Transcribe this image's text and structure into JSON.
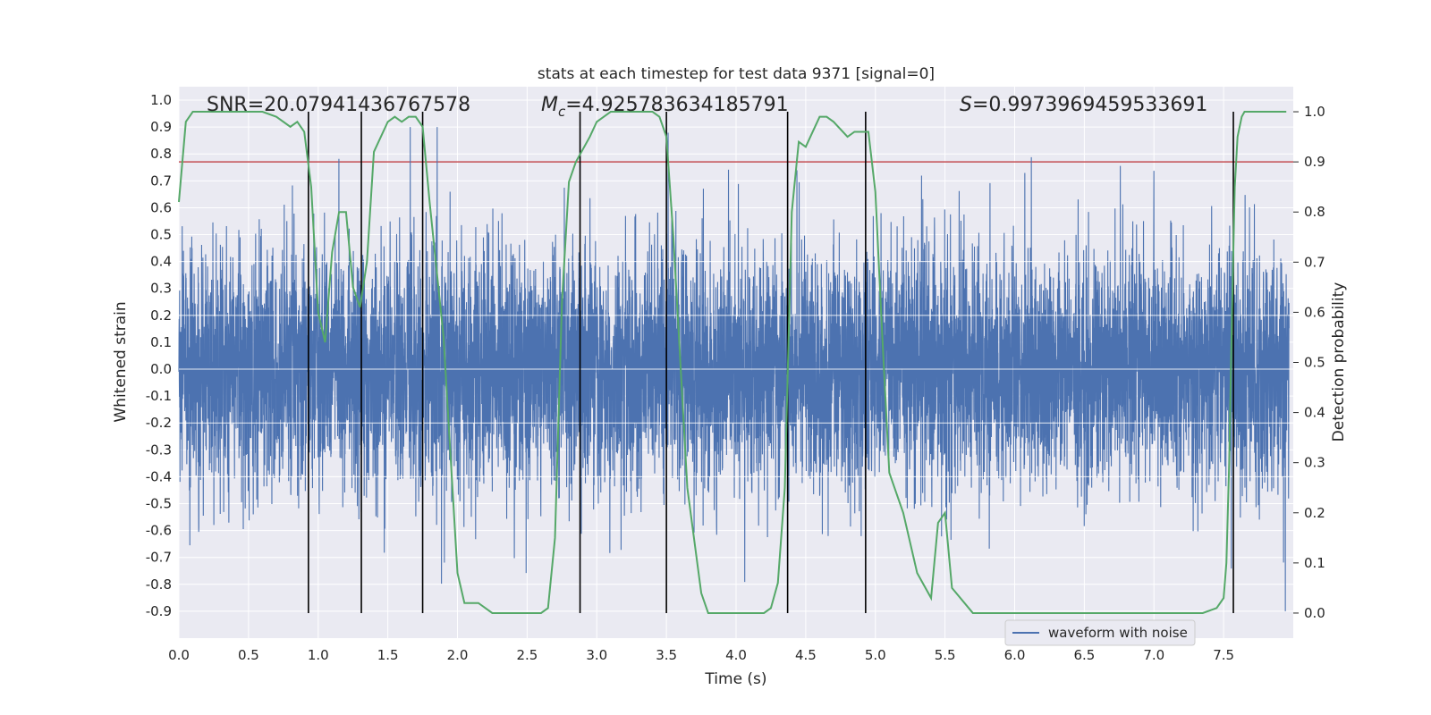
{
  "chart_data": {
    "type": "line",
    "title": "stats at each timestep for test data 9371 [signal=0]",
    "xlabel": "Time (s)",
    "ylabel_left": "Whitened strain",
    "ylabel_right": "Detection probability",
    "xlim": [
      0.0,
      8.0
    ],
    "ylim_left": [
      -1.0,
      1.05
    ],
    "ylim_right": [
      -0.05,
      1.05
    ],
    "xticks": [
      "0.0",
      "0.5",
      "1.0",
      "1.5",
      "2.0",
      "2.5",
      "3.0",
      "3.5",
      "4.0",
      "4.5",
      "5.0",
      "5.5",
      "6.0",
      "6.5",
      "7.0",
      "7.5"
    ],
    "yticks_left": [
      "-0.9",
      "-0.8",
      "-0.7",
      "-0.6",
      "-0.5",
      "-0.4",
      "-0.3",
      "-0.2",
      "-0.1",
      "0.0",
      "0.1",
      "0.2",
      "0.3",
      "0.4",
      "0.5",
      "0.6",
      "0.7",
      "0.8",
      "0.9",
      "1.0"
    ],
    "yticks_right": [
      "0.0",
      "0.1",
      "0.2",
      "0.3",
      "0.4",
      "0.5",
      "0.6",
      "0.7",
      "0.8",
      "0.9",
      "1.0"
    ],
    "grid": true,
    "legend": {
      "placement": "lower-right",
      "entries": [
        "waveform with noise"
      ]
    },
    "annotations": {
      "snr": "SNR=20.07941436767578",
      "mc_symbol": "M",
      "mc_sub": "c",
      "mc_value": "=4.925783634185791",
      "s_symbol": "S",
      "s_value": "=0.9973969459533691"
    },
    "threshold": {
      "value": 0.9,
      "axis": "right",
      "color": "#c44e52"
    },
    "vertical_lines_x": [
      0.93,
      1.31,
      1.75,
      2.88,
      3.5,
      4.37,
      4.93,
      7.57
    ],
    "waveform": {
      "name": "waveform with noise",
      "color": "#4c72b0",
      "n_samples": 8000,
      "core_amplitude": 0.3,
      "peak_max": 0.9
    },
    "detection_probability": {
      "color": "#55a868",
      "x": [
        0.0,
        0.05,
        0.1,
        0.2,
        0.4,
        0.6,
        0.7,
        0.8,
        0.85,
        0.9,
        0.95,
        1.0,
        1.05,
        1.1,
        1.15,
        1.2,
        1.25,
        1.3,
        1.35,
        1.4,
        1.5,
        1.55,
        1.6,
        1.65,
        1.7,
        1.75,
        1.8,
        1.9,
        2.0,
        2.05,
        2.1,
        2.15,
        2.2,
        2.25,
        2.3,
        2.5,
        2.6,
        2.65,
        2.7,
        2.75,
        2.8,
        2.85,
        2.95,
        3.0,
        3.1,
        3.2,
        3.4,
        3.45,
        3.5,
        3.55,
        3.65,
        3.75,
        3.8,
        3.85,
        4.0,
        4.2,
        4.25,
        4.3,
        4.35,
        4.4,
        4.45,
        4.5,
        4.55,
        4.6,
        4.65,
        4.7,
        4.8,
        4.85,
        4.9,
        4.95,
        5.0,
        5.05,
        5.1,
        5.2,
        5.3,
        5.4,
        5.45,
        5.5,
        5.55,
        5.7,
        6.0,
        6.1,
        6.2,
        6.3,
        6.5,
        7.0,
        7.2,
        7.3,
        7.35,
        7.45,
        7.5,
        7.52,
        7.54,
        7.56,
        7.58,
        7.6,
        7.63,
        7.65,
        7.7,
        7.8,
        7.9,
        7.95
      ],
      "y": [
        0.82,
        0.98,
        1.0,
        1.0,
        1.0,
        1.0,
        0.99,
        0.97,
        0.98,
        0.96,
        0.85,
        0.6,
        0.54,
        0.72,
        0.8,
        0.8,
        0.65,
        0.61,
        0.7,
        0.92,
        0.98,
        0.99,
        0.98,
        0.99,
        0.99,
        0.97,
        0.82,
        0.55,
        0.08,
        0.02,
        0.02,
        0.02,
        0.01,
        0.0,
        0.0,
        0.0,
        0.0,
        0.01,
        0.15,
        0.62,
        0.86,
        0.9,
        0.95,
        0.98,
        1.0,
        1.0,
        1.0,
        0.99,
        0.95,
        0.75,
        0.25,
        0.04,
        0.0,
        0.0,
        0.0,
        0.0,
        0.01,
        0.06,
        0.25,
        0.8,
        0.94,
        0.93,
        0.96,
        0.99,
        0.99,
        0.98,
        0.95,
        0.96,
        0.96,
        0.96,
        0.84,
        0.55,
        0.28,
        0.2,
        0.08,
        0.03,
        0.18,
        0.2,
        0.05,
        0.0,
        0.0,
        0.0,
        0.0,
        0.0,
        0.0,
        0.0,
        0.0,
        0.0,
        0.0,
        0.01,
        0.03,
        0.1,
        0.3,
        0.6,
        0.85,
        0.95,
        0.99,
        1.0,
        1.0,
        1.0,
        1.0,
        1.0
      ]
    }
  }
}
